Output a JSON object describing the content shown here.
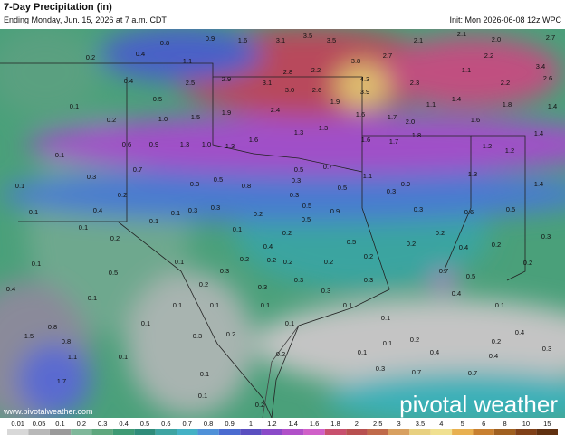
{
  "header": {
    "title": "7-Day Precipitation (in)",
    "subtitle": "Ending Monday, Jun. 15, 2026 at 7 a.m. CDT",
    "init": "Init: Mon 2026-06-08 12z WPC"
  },
  "map": {
    "labels": [
      "0.8",
      "0.9",
      "1.6",
      "3.1",
      "3.5",
      "3.5",
      "2.1",
      "2.1",
      "2.0",
      "2.7",
      "0.2",
      "0.4",
      "1.1",
      "3.8",
      "2.7",
      "2.2",
      "3.4",
      "2.9",
      "3.1",
      "2.8",
      "2.2",
      "4.3",
      "2.3",
      "1.1",
      "2.2",
      "2.6",
      "0.4",
      "2.5",
      "3.0",
      "2.6",
      "3.9",
      "0.5",
      "0.1",
      "0.2",
      "1.0",
      "1.5",
      "1.9",
      "2.4",
      "1.9",
      "1.6",
      "1.7",
      "2.0",
      "1.1",
      "1.4",
      "1.6",
      "1.8",
      "1.4",
      "1.3",
      "1.3",
      "1.6",
      "1.7",
      "1.8",
      "1.6",
      "0.6",
      "0.9",
      "1.3",
      "1.0",
      "1.3",
      "1.2",
      "1.2",
      "1.4",
      "0.1",
      "0.7",
      "0.3",
      "0.1",
      "0.2",
      "0.3",
      "0.5",
      "0.8",
      "0.5",
      "0.7",
      "1.1",
      "0.9",
      "1.3",
      "1.4",
      "0.3",
      "0.5",
      "0.3",
      "0.3",
      "0.4",
      "0.3",
      "0.3",
      "0.2",
      "0.5",
      "0.9",
      "0.3",
      "0.6",
      "0.5",
      "0.1",
      "0.1",
      "0.1",
      "0.1",
      "0.1",
      "0.2",
      "0.5",
      "0.2",
      "0.3",
      "0.2",
      "0.4",
      "0.5",
      "0.2",
      "0.4",
      "0.2",
      "0.1",
      "0.5",
      "0.1",
      "0.2",
      "0.2",
      "0.2",
      "0.2",
      "0.2",
      "0.4",
      "0.1",
      "0.2",
      "0.3",
      "0.3",
      "0.7",
      "0.5",
      "0.2",
      "0.3",
      "0.3",
      "0.3",
      "0.4",
      "0.1",
      "0.1",
      "0.1",
      "0.1",
      "0.1",
      "1.5",
      "0.8",
      "0.8",
      "0.1",
      "0.3",
      "0.2",
      "0.1",
      "0.1",
      "0.4",
      "1.1",
      "0.1",
      "0.2",
      "0.2",
      "0.3",
      "0.1",
      "0.2",
      "0.1",
      "0.4",
      "0.4",
      "1.7",
      "0.1",
      "0.3",
      "0.7",
      "0.7",
      "0.1",
      "0.2"
    ]
  },
  "colorbar": {
    "labels": [
      "0.01",
      "0.05",
      "0.1",
      "0.2",
      "0.3",
      "0.4",
      "0.5",
      "0.6",
      "0.7",
      "0.8",
      "0.9",
      "1",
      "1.2",
      "1.4",
      "1.6",
      "1.8",
      "2",
      "2.5",
      "3",
      "3.5",
      "4",
      "5",
      "6",
      "8",
      "10",
      "15"
    ],
    "colors": [
      "#d8d8d8",
      "#b8b8b8",
      "#9a9a9a",
      "#7fb79a",
      "#5ea77e",
      "#3e9a74",
      "#2f8c7a",
      "#3ea4a2",
      "#44b1c5",
      "#4f91d8",
      "#4a6bd0",
      "#5a4fc0",
      "#8a4ac8",
      "#b050c8",
      "#d060c8",
      "#c8506e",
      "#b85050",
      "#c06a4a",
      "#d8a060",
      "#e8d080",
      "#f0e090",
      "#e8b050",
      "#c88030",
      "#a06020",
      "#804018",
      "#603010"
    ]
  },
  "footer": {
    "url": "www.pivotalweather.com",
    "logo": "pivotal weather"
  }
}
